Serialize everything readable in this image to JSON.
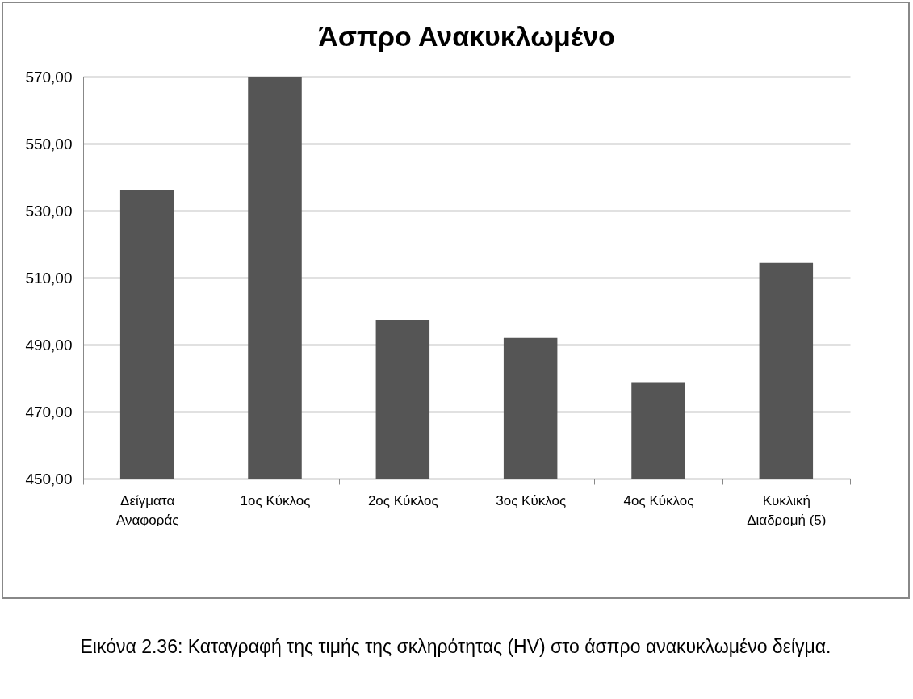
{
  "chart_data": {
    "type": "bar",
    "title": "Άσπρο Ανακυκλωμένο",
    "categories": [
      "Δείγματα Αναφοράς",
      "1ος Κύκλος",
      "2ος Κύκλος",
      "3ος Κύκλος",
      "4ος Κύκλος",
      "Κυκλική Διαδρομή (5)"
    ],
    "values": [
      536,
      570,
      497.5,
      492,
      478.8,
      514.4
    ],
    "color": "#555555",
    "ylim": [
      450,
      570
    ],
    "yticks": [
      {
        "value": 450,
        "label": "450,00"
      },
      {
        "value": 470,
        "label": "470,00"
      },
      {
        "value": 490,
        "label": "490,00"
      },
      {
        "value": 510,
        "label": "510,00"
      },
      {
        "value": 530,
        "label": "530,00"
      },
      {
        "value": 550,
        "label": "550,00"
      },
      {
        "value": 570,
        "label": "570,00"
      }
    ],
    "grid": "y",
    "annotations": [
      "Εικόνα 2.36: Καταγραφή της τιμής της σκληρότητας (HV) στο άσπρο ανακυκλωμένο δείγμα."
    ]
  }
}
